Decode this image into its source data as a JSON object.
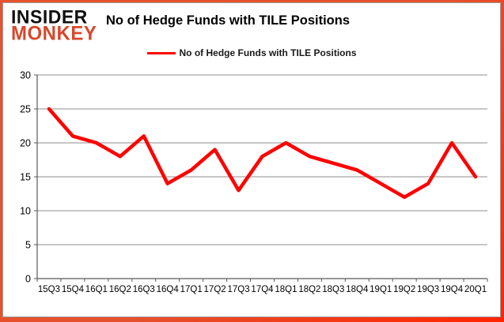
{
  "brand": {
    "line1": "INSIDER",
    "line2": "MONKEY",
    "line1_color": "#111111",
    "line2_color": "#d8472b"
  },
  "header": {
    "title": "No of Hedge Funds with TILE Positions"
  },
  "legend": {
    "label": "No of Hedge Funds with TILE Positions",
    "line_color": "#ff0000"
  },
  "colors": {
    "frame_border": "#e6502c",
    "grid": "#8c8c8c",
    "axis": "#595959",
    "series": "#ff0000",
    "text": "#000000"
  },
  "chart_data": {
    "type": "line",
    "title": "No of Hedge Funds with TILE Positions",
    "categories": [
      "15Q3",
      "15Q4",
      "16Q1",
      "16Q2",
      "16Q3",
      "16Q4",
      "17Q1",
      "17Q2",
      "17Q3",
      "17Q4",
      "18Q1",
      "18Q2",
      "18Q3",
      "18Q4",
      "19Q1",
      "19Q2",
      "19Q3",
      "19Q4",
      "20Q1"
    ],
    "series": [
      {
        "name": "No of Hedge Funds with TILE Positions",
        "color": "#ff0000",
        "values": [
          25,
          21,
          20,
          18,
          21,
          14,
          16,
          19,
          13,
          18,
          20,
          18,
          17,
          16,
          14,
          12,
          14,
          20,
          15
        ]
      }
    ],
    "xlabel": "",
    "ylabel": "",
    "ylim": [
      0,
      30
    ],
    "ytick_step": 5,
    "yticks": [
      0,
      5,
      10,
      15,
      20,
      25,
      30
    ],
    "grid": true,
    "legend_position": "top"
  }
}
